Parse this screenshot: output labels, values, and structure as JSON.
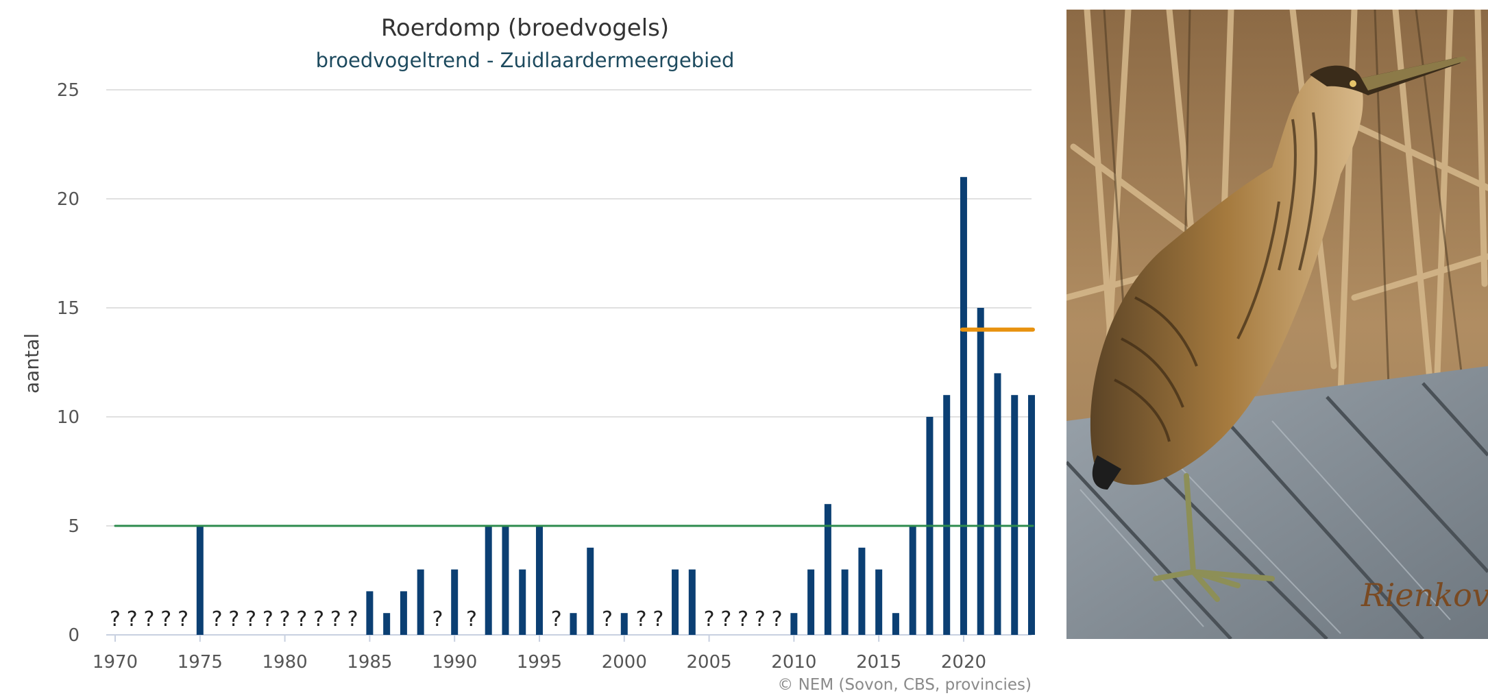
{
  "chart_data": {
    "type": "bar",
    "title": "Roerdomp (broedvogels)",
    "subtitle": "broedvogeltrend - Zuidlaardermeergebied",
    "ylabel": "aantal",
    "xlabel": "",
    "ylim": [
      0,
      25
    ],
    "xlim": [
      1970,
      2024
    ],
    "yticks": [
      0,
      5,
      10,
      15,
      20,
      25
    ],
    "xticks": [
      1970,
      1975,
      1980,
      1985,
      1990,
      1995,
      2000,
      2005,
      2010,
      2015,
      2020
    ],
    "grid": true,
    "bar_color": "#0b3f73",
    "missing_marker": "?",
    "years": [
      1970,
      1971,
      1972,
      1973,
      1974,
      1975,
      1976,
      1977,
      1978,
      1979,
      1980,
      1981,
      1982,
      1983,
      1984,
      1985,
      1986,
      1987,
      1988,
      1989,
      1990,
      1991,
      1992,
      1993,
      1994,
      1995,
      1996,
      1997,
      1998,
      1999,
      2000,
      2001,
      2002,
      2003,
      2004,
      2005,
      2006,
      2007,
      2008,
      2009,
      2010,
      2011,
      2012,
      2013,
      2014,
      2015,
      2016,
      2017,
      2018,
      2019,
      2020,
      2021,
      2022,
      2023,
      2024
    ],
    "values": [
      null,
      null,
      null,
      null,
      null,
      5,
      null,
      null,
      null,
      null,
      null,
      null,
      null,
      null,
      null,
      2,
      1,
      2,
      3,
      null,
      3,
      null,
      5,
      5,
      3,
      5,
      null,
      1,
      4,
      null,
      1,
      null,
      null,
      3,
      3,
      null,
      null,
      null,
      null,
      null,
      1,
      3,
      6,
      3,
      4,
      3,
      1,
      5,
      10,
      11,
      21,
      15,
      12,
      11,
      11
    ],
    "reference_lines": [
      {
        "value": 5,
        "from": 1970,
        "to": 2024,
        "color": "#2e8b4e"
      },
      {
        "value": 14,
        "from": 2020,
        "to": 2024,
        "color": "#e8920f"
      }
    ],
    "credit": "© NEM (Sovon, CBS, provincies)"
  },
  "photo": {
    "subject": "bittern standing on wooden decking in front of reeds",
    "signature": "Rienkov"
  }
}
